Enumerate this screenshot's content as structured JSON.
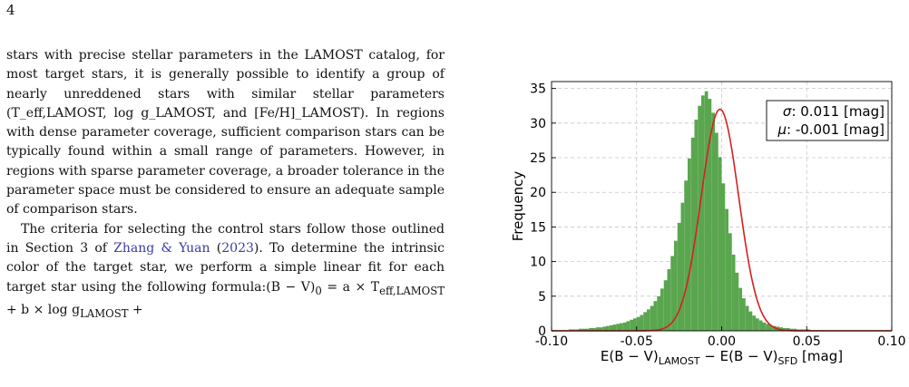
{
  "page_number": "4",
  "paragraph1": "stars with precise stellar parameters in the LAMOST catalog, for most target stars, it is generally possible to identify a group of nearly unreddened stars with similar stellar parameters (T_eff,LAMOST, log g_LAMOST, and [Fe/H]_LAMOST). In regions with dense parameter coverage, sufficient comparison stars can be typically found within a small range of parameters. However, in regions with sparse parameter coverage, a broader tolerance in the parameter space must be considered to ensure an adequate sample of comparison stars.",
  "paragraph2": {
    "before": "The criteria for selecting the control stars follow those outlined in Section 3 of ",
    "link": "Zhang & Yuan",
    "paren_open": " (",
    "year": "2023",
    "after": "). To determine the intrinsic color of the target star, we perform a simple linear fit for each target star using the following formula:(B − V)",
    "sub0": "0",
    "eq": " = a × T",
    "sub1": "eff,LAMOST",
    "eq2": " + b × log g",
    "sub2": "LAMOST",
    "eq3": " +"
  },
  "chart_data": {
    "type": "histogram",
    "xlabel_parts": [
      "E(B − V)",
      "LAMOST",
      " − E(B − V)",
      "SFD",
      " [mag]"
    ],
    "ylabel": "Frequency",
    "xlim": [
      -0.1,
      0.1
    ],
    "ylim": [
      0,
      36
    ],
    "xticks": [
      -0.1,
      -0.05,
      0.0,
      0.05,
      0.1
    ],
    "xtick_labels": [
      "-0.10",
      "-0.05",
      "0.00",
      "0.05",
      "0.10"
    ],
    "yticks": [
      0,
      5,
      10,
      15,
      20,
      25,
      30,
      35
    ],
    "ytick_labels": [
      "0",
      "5",
      "10",
      "15",
      "20",
      "25",
      "30",
      "35"
    ],
    "grid": true,
    "bar_color": "#5aa64f",
    "fit_color": "#d62020",
    "fit": {
      "sigma": 0.011,
      "mu": -0.001,
      "peak": 32
    },
    "legend": {
      "placement": "top-right",
      "sigma_sym": "σ",
      "sigma_text": ": 0.011 [mag]",
      "mu_sym": "μ",
      "mu_text": ": -0.001 [mag]"
    },
    "bins": {
      "start": -0.1,
      "width": 0.002,
      "counts": [
        0.1,
        0.1,
        0.1,
        0.1,
        0.1,
        0.2,
        0.2,
        0.2,
        0.3,
        0.3,
        0.3,
        0.4,
        0.4,
        0.5,
        0.5,
        0.6,
        0.7,
        0.8,
        0.9,
        1.0,
        1.1,
        1.2,
        1.4,
        1.6,
        1.8,
        2.0,
        2.3,
        2.7,
        3.1,
        3.6,
        4.3,
        5.0,
        6.1,
        7.3,
        8.9,
        10.8,
        13.0,
        15.6,
        18.5,
        21.7,
        24.9,
        27.9,
        30.5,
        32.5,
        34.0,
        34.6,
        33.5,
        31.5,
        28.6,
        25.1,
        21.3,
        17.6,
        14.1,
        11.0,
        8.4,
        6.2,
        4.7,
        3.6,
        2.8,
        2.2,
        1.8,
        1.5,
        1.2,
        1.0,
        0.8,
        0.7,
        0.6,
        0.5,
        0.4,
        0.4,
        0.3,
        0.3,
        0.2,
        0.2,
        0.2,
        0.2,
        0.1,
        0.1,
        0.1,
        0.1,
        0.1,
        0.1,
        0.1,
        0.1,
        0.1,
        0.1,
        0.1,
        0.1,
        0.1,
        0.1,
        0.1,
        0.1,
        0.1,
        0.1,
        0.1,
        0.1,
        0.1,
        0.1,
        0.1,
        0.1
      ]
    }
  }
}
